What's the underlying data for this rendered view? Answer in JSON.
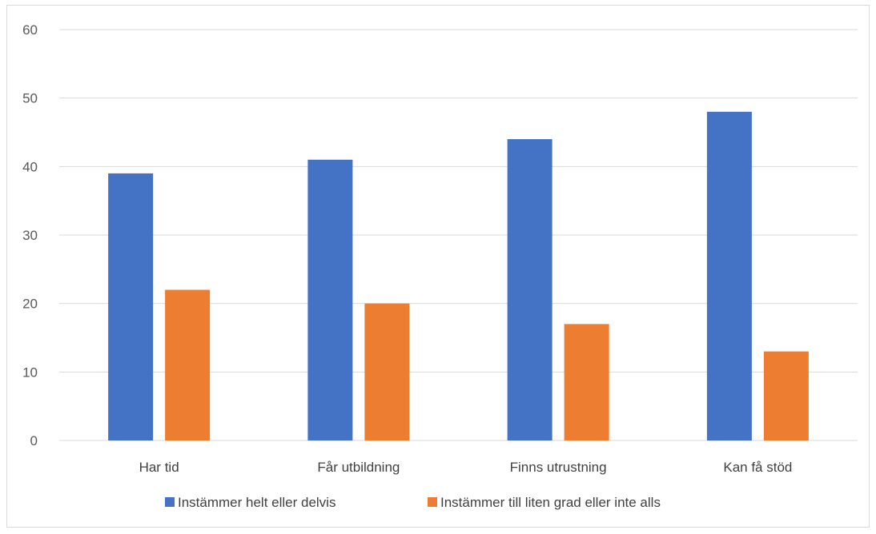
{
  "chart_data": {
    "type": "bar",
    "categories": [
      "Har tid",
      "Får utbildning",
      "Finns utrustning",
      "Kan få stöd"
    ],
    "series": [
      {
        "name": "Instämmer helt eller delvis",
        "values": [
          39,
          41,
          44,
          48
        ],
        "color": "#4472c4"
      },
      {
        "name": "Instämmer till liten grad eller inte alls",
        "values": [
          22,
          20,
          17,
          13
        ],
        "color": "#ed7d31"
      }
    ],
    "ylim": [
      0,
      60
    ],
    "yticks": [
      0,
      10,
      20,
      30,
      40,
      50,
      60
    ],
    "grid": true,
    "legend_position": "bottom",
    "gridline_color": "#d9d9d9"
  }
}
